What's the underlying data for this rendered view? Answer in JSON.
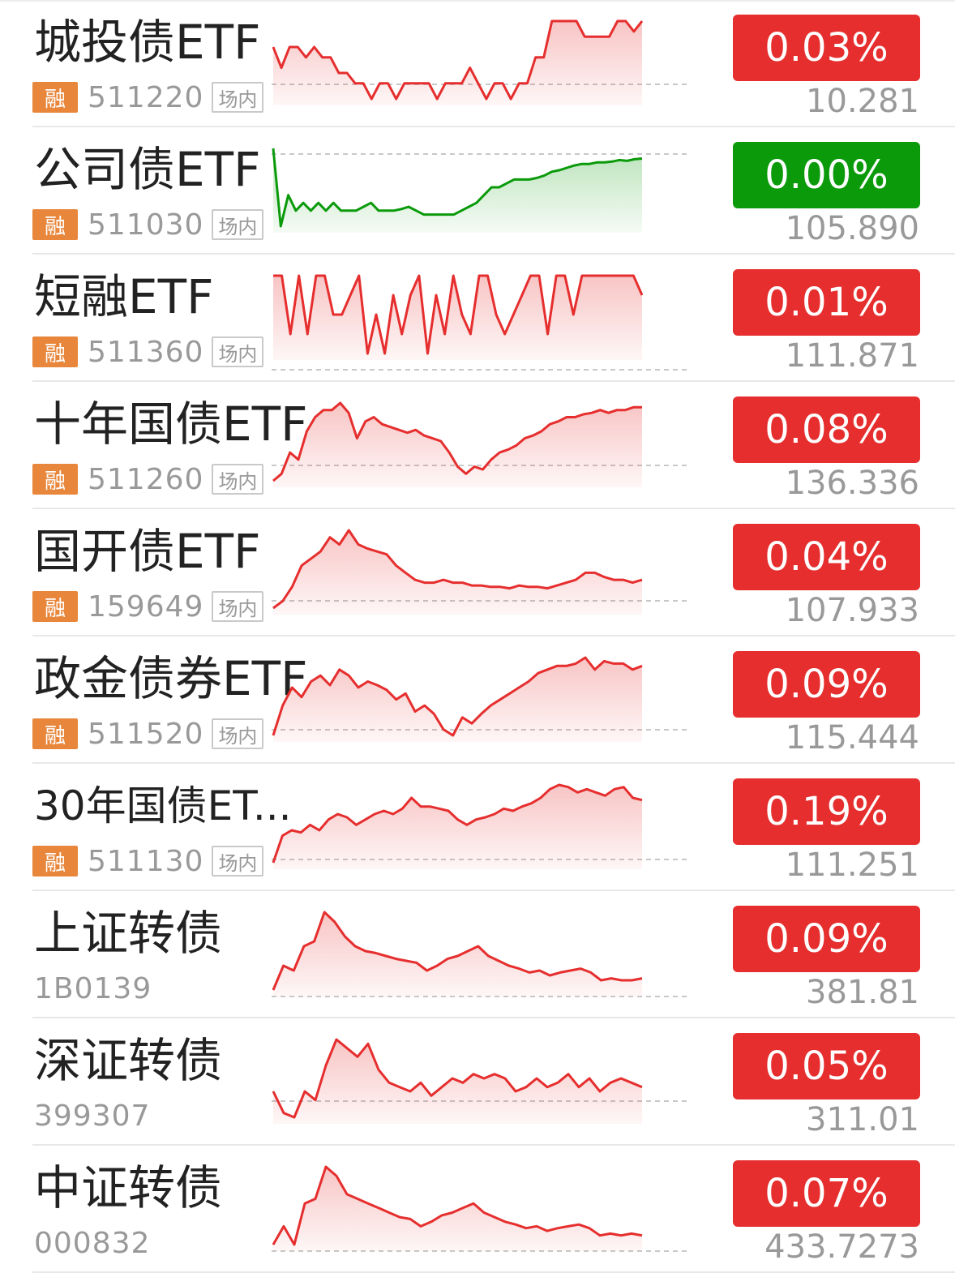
{
  "colors": {
    "up": "#e62e2e",
    "flat": "#0a9a0a",
    "rong_badge": "#e8873c",
    "grey_text": "#999999"
  },
  "items": [
    {
      "name": "城投债ETF",
      "rong": "融",
      "code": "511220",
      "venue": "场内",
      "change": "0.03%",
      "price": "10.281",
      "trend": "up",
      "spark": [
        0.8,
        0.4,
        0.8,
        0.8,
        0.6,
        0.8,
        0.6,
        0.6,
        0.3,
        0.3,
        0.1,
        0.1,
        -0.2,
        0.1,
        0.1,
        -0.2,
        0.1,
        0.1,
        0.1,
        0.1,
        -0.2,
        0.1,
        0.1,
        0.1,
        0.4,
        0.1,
        -0.2,
        0.1,
        0.1,
        -0.2,
        0.1,
        0.1,
        0.6,
        0.6,
        1.3,
        1.3,
        1.3,
        1.3,
        1.0,
        1.0,
        1.0,
        1.0,
        1.3,
        1.3,
        1.1,
        1.3
      ]
    },
    {
      "name": "公司债ETF",
      "rong": "融",
      "code": "511030",
      "venue": "场内",
      "change": "0.00%",
      "price": "105.890",
      "trend": "flat",
      "spark": [
        1.0,
        0.0,
        0.4,
        0.2,
        0.3,
        0.2,
        0.3,
        0.2,
        0.3,
        0.2,
        0.2,
        0.2,
        0.25,
        0.3,
        0.2,
        0.2,
        0.2,
        0.22,
        0.25,
        0.2,
        0.15,
        0.15,
        0.15,
        0.15,
        0.15,
        0.2,
        0.25,
        0.3,
        0.4,
        0.5,
        0.5,
        0.55,
        0.6,
        0.6,
        0.6,
        0.62,
        0.65,
        0.7,
        0.72,
        0.75,
        0.78,
        0.8,
        0.8,
        0.82,
        0.82,
        0.83,
        0.85,
        0.84,
        0.86,
        0.87
      ]
    },
    {
      "name": "短融ETF",
      "rong": "融",
      "code": "511360",
      "venue": "场内",
      "change": "0.01%",
      "price": "111.871",
      "trend": "up",
      "spark": [
        1,
        1,
        0.85,
        1,
        0.85,
        1,
        1,
        0.9,
        0.9,
        0.95,
        1,
        0.8,
        0.9,
        0.8,
        0.95,
        0.85,
        0.95,
        1,
        0.8,
        0.95,
        0.85,
        1,
        0.9,
        0.85,
        1,
        1,
        0.9,
        0.85,
        0.9,
        0.95,
        1,
        1,
        0.85,
        1,
        1,
        0.9,
        1,
        1,
        1,
        1,
        1,
        1,
        1,
        0.95
      ]
    },
    {
      "name": "十年国债ETF",
      "rong": "融",
      "code": "511260",
      "venue": "场内",
      "change": "0.08%",
      "price": "136.336",
      "trend": "up",
      "spark": [
        0.4,
        0.45,
        0.6,
        0.55,
        0.75,
        0.85,
        0.9,
        0.9,
        0.95,
        0.88,
        0.7,
        0.82,
        0.85,
        0.8,
        0.78,
        0.76,
        0.74,
        0.76,
        0.72,
        0.7,
        0.68,
        0.6,
        0.5,
        0.45,
        0.5,
        0.48,
        0.55,
        0.6,
        0.62,
        0.65,
        0.7,
        0.72,
        0.75,
        0.8,
        0.82,
        0.85,
        0.85,
        0.87,
        0.88,
        0.9,
        0.88,
        0.9,
        0.9,
        0.92,
        0.92
      ]
    },
    {
      "name": "国开债ETF",
      "rong": "融",
      "code": "159649",
      "venue": "场内",
      "change": "0.04%",
      "price": "107.933",
      "trend": "up",
      "spark": [
        0.3,
        0.35,
        0.45,
        0.6,
        0.65,
        0.7,
        0.8,
        0.75,
        0.85,
        0.75,
        0.72,
        0.7,
        0.68,
        0.6,
        0.55,
        0.5,
        0.48,
        0.48,
        0.5,
        0.48,
        0.48,
        0.46,
        0.46,
        0.45,
        0.45,
        0.44,
        0.46,
        0.45,
        0.45,
        0.44,
        0.46,
        0.48,
        0.5,
        0.55,
        0.55,
        0.52,
        0.5,
        0.5,
        0.48,
        0.5
      ]
    },
    {
      "name": "政金债券ETF",
      "rong": "融",
      "code": "511520",
      "venue": "场内",
      "change": "0.09%",
      "price": "115.444",
      "trend": "up",
      "spark": [
        0.3,
        0.55,
        0.7,
        0.62,
        0.75,
        0.8,
        0.72,
        0.85,
        0.8,
        0.7,
        0.75,
        0.72,
        0.68,
        0.6,
        0.65,
        0.5,
        0.55,
        0.48,
        0.35,
        0.3,
        0.45,
        0.4,
        0.48,
        0.55,
        0.6,
        0.65,
        0.7,
        0.75,
        0.82,
        0.85,
        0.88,
        0.88,
        0.9,
        0.95,
        0.85,
        0.92,
        0.9,
        0.9,
        0.85,
        0.88
      ]
    },
    {
      "name": "30年国债ET...",
      "rong": "融",
      "code": "511130",
      "venue": "场内",
      "change": "0.19%",
      "price": "111.251",
      "trend": "up",
      "spark": [
        0.2,
        0.45,
        0.5,
        0.48,
        0.55,
        0.5,
        0.6,
        0.65,
        0.62,
        0.55,
        0.6,
        0.65,
        0.68,
        0.65,
        0.7,
        0.8,
        0.72,
        0.72,
        0.7,
        0.68,
        0.6,
        0.55,
        0.6,
        0.62,
        0.65,
        0.7,
        0.68,
        0.72,
        0.75,
        0.8,
        0.88,
        0.92,
        0.9,
        0.85,
        0.88,
        0.85,
        0.82,
        0.88,
        0.9,
        0.8,
        0.78
      ]
    },
    {
      "name": "上证转债",
      "rong": "",
      "code": "1B0139",
      "venue": "",
      "change": "0.09%",
      "price": "381.81",
      "trend": "up",
      "spark": [
        0.1,
        0.35,
        0.3,
        0.55,
        0.6,
        0.9,
        0.8,
        0.65,
        0.55,
        0.5,
        0.48,
        0.45,
        0.42,
        0.4,
        0.38,
        0.3,
        0.35,
        0.42,
        0.45,
        0.5,
        0.55,
        0.45,
        0.4,
        0.35,
        0.32,
        0.28,
        0.3,
        0.25,
        0.28,
        0.3,
        0.32,
        0.28,
        0.2,
        0.22,
        0.2,
        0.2,
        0.22
      ]
    },
    {
      "name": "深证转债",
      "rong": "",
      "code": "399307",
      "venue": "",
      "change": "0.05%",
      "price": "311.01",
      "trend": "up",
      "spark": [
        0.3,
        0.05,
        0.0,
        0.3,
        0.2,
        0.6,
        0.9,
        0.8,
        0.7,
        0.85,
        0.55,
        0.4,
        0.35,
        0.3,
        0.4,
        0.25,
        0.35,
        0.45,
        0.4,
        0.5,
        0.45,
        0.5,
        0.45,
        0.3,
        0.35,
        0.45,
        0.35,
        0.4,
        0.5,
        0.35,
        0.45,
        0.3,
        0.4,
        0.45,
        0.4,
        0.35
      ]
    },
    {
      "name": "中证转债",
      "rong": "",
      "code": "000832",
      "venue": "",
      "change": "0.07%",
      "price": "433.7273",
      "trend": "up",
      "spark": [
        0.1,
        0.3,
        0.1,
        0.55,
        0.6,
        0.95,
        0.85,
        0.65,
        0.6,
        0.55,
        0.5,
        0.45,
        0.4,
        0.38,
        0.3,
        0.35,
        0.42,
        0.45,
        0.5,
        0.55,
        0.45,
        0.4,
        0.35,
        0.32,
        0.28,
        0.3,
        0.25,
        0.28,
        0.3,
        0.32,
        0.28,
        0.2,
        0.22,
        0.2,
        0.22,
        0.2
      ]
    }
  ]
}
